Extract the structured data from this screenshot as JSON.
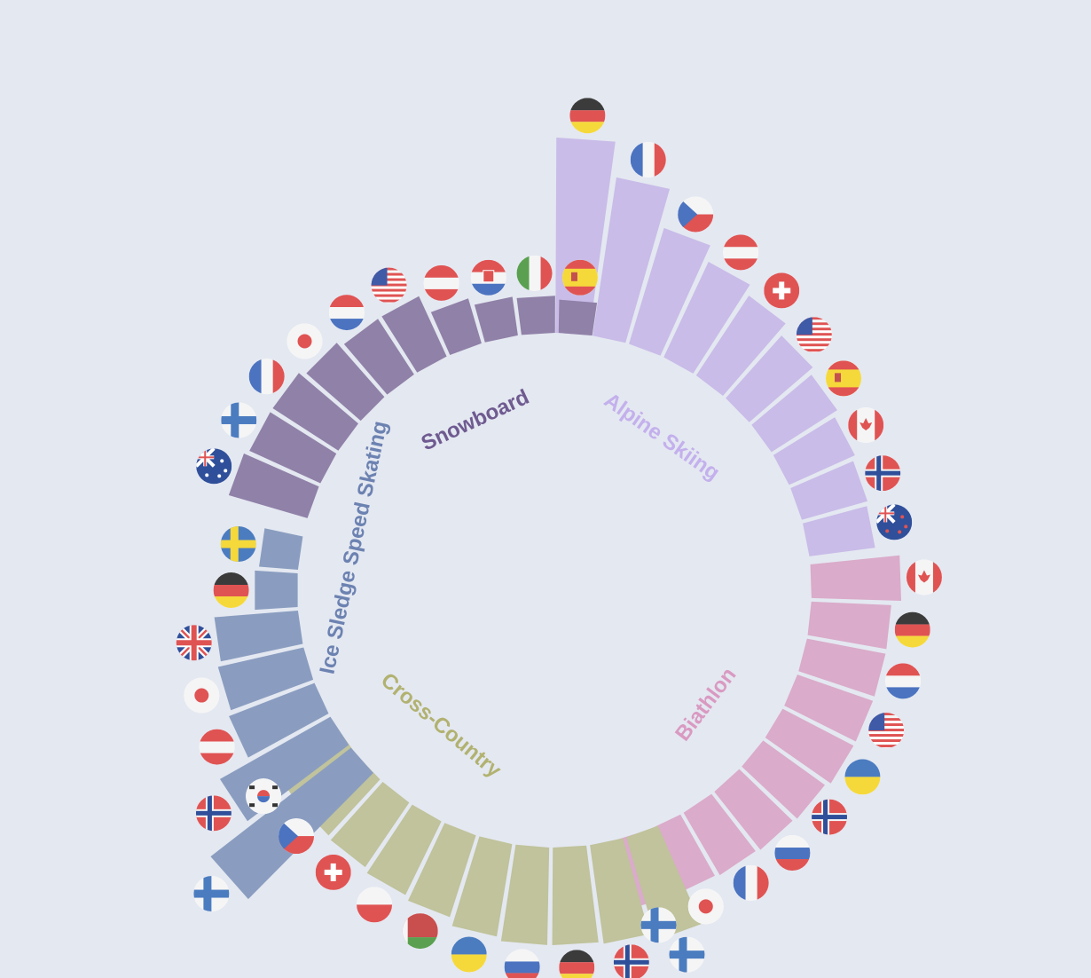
{
  "chart_data": {
    "type": "bar",
    "layout": "radial",
    "groups": [
      {
        "name": "Alpine Skiing",
        "color": "#c9bce8",
        "label_color": "#c3b0ec",
        "categories": [
          "GER",
          "FRA",
          "CZE",
          "AUT",
          "SUI",
          "USA",
          "ESP",
          "CAN",
          "NOR",
          "NZL"
        ],
        "values": [
          100,
          82,
          62,
          54,
          49,
          43,
          40,
          37,
          35,
          34
        ]
      },
      {
        "name": "Biathlon",
        "color": "#daabca",
        "label_color": "#d99ac2",
        "categories": [
          "CAN",
          "GER",
          "NED",
          "USA",
          "UKR",
          "NOR",
          "RUS",
          "FRA",
          "JPN",
          "FIN"
        ],
        "values": [
          46,
          41,
          41,
          41,
          41,
          39,
          38,
          37,
          36,
          36
        ]
      },
      {
        "name": "Cross-Country",
        "color": "#c0c39b",
        "label_color": "#b1b270",
        "categories": [
          "FIN",
          "NOR",
          "GER",
          "RUS",
          "UKR",
          "BLR",
          "POL",
          "SUI",
          "CZE",
          "KOR"
        ],
        "values": [
          55,
          51,
          50,
          50,
          48,
          44,
          42,
          40,
          39,
          39
        ]
      },
      {
        "name": "Ice Sledge Speed Skating",
        "color": "#8a9dc0",
        "label_color": "#6c82b1",
        "categories": [
          "FIN",
          "NOR",
          "AUT",
          "JPN",
          "GBR",
          "GER",
          "SWE"
        ],
        "values": [
          91,
          65,
          47,
          45,
          43,
          22,
          20
        ]
      },
      {
        "name": "Snowboard",
        "color": "#9081a8",
        "label_color": "#6f5a90",
        "categories": [
          "AUS",
          "FIN",
          "FRA",
          "JPN",
          "NED",
          "USA",
          "AUT",
          "CRO",
          "ITA",
          "ESP"
        ],
        "values": [
          42,
          40,
          40,
          37,
          34,
          34,
          24,
          20,
          19,
          17
        ]
      }
    ],
    "title": "",
    "xlabel": "",
    "ylabel": ""
  }
}
